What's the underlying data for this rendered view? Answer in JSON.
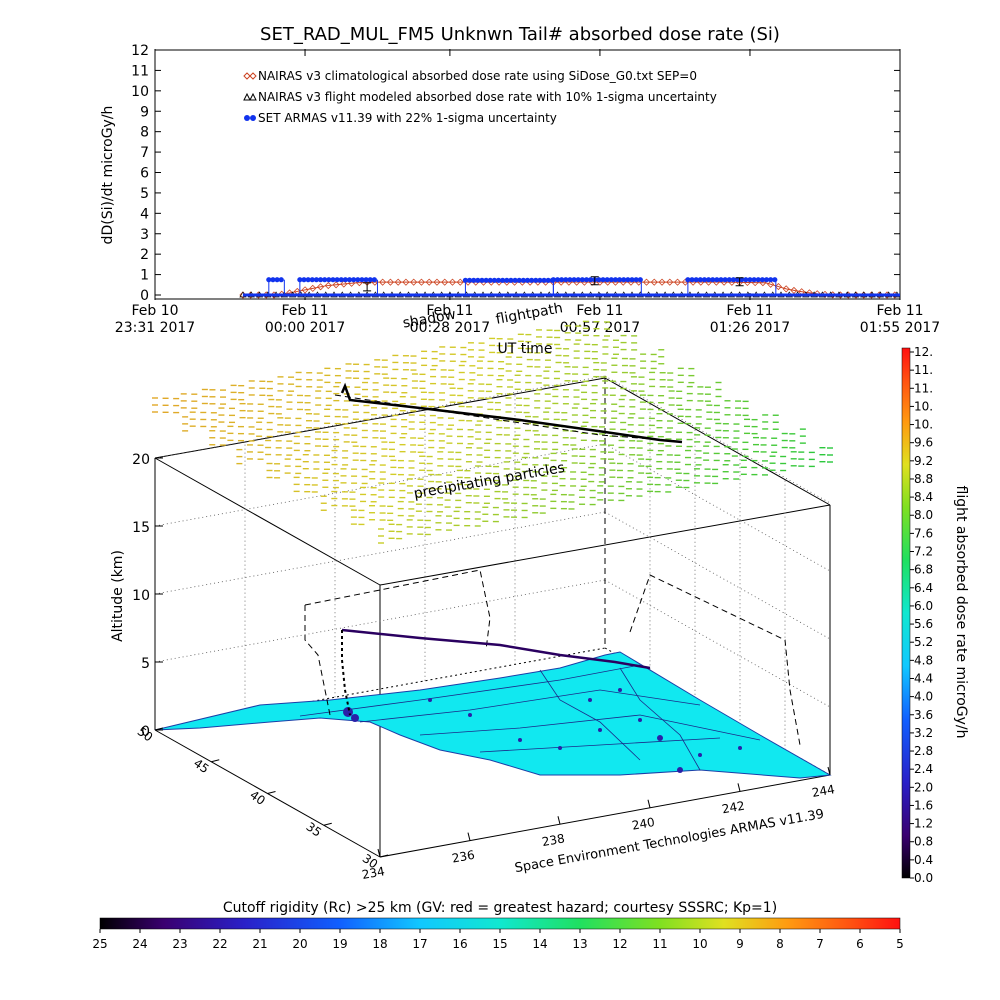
{
  "chart_data": [
    {
      "type": "line",
      "title": "SET_RAD_MUL_FM5 Unknwn Tail#  absorbed dose rate (Si)",
      "ylabel": "dD(Si)/dt microGy/h",
      "xlabel": "UT time",
      "ylim": [
        0,
        12
      ],
      "yticks": [
        0,
        1,
        2,
        3,
        4,
        5,
        6,
        7,
        8,
        9,
        10,
        11,
        12
      ],
      "xrange": [
        "2017-02-10 23:31",
        "2017-02-11 01:55"
      ],
      "xticks": [
        {
          "line1": "Feb 10",
          "line2": "23:31 2017"
        },
        {
          "line1": "Feb 11",
          "line2": "00:00 2017"
        },
        {
          "line1": "Feb 11",
          "line2": "00:28 2017"
        },
        {
          "line1": "Feb 11",
          "line2": "00:57 2017"
        },
        {
          "line1": "Feb 11",
          "line2": "01:26 2017"
        },
        {
          "line1": "Feb 11",
          "line2": "01:55 2017"
        }
      ],
      "legend": [
        {
          "label": "NAIRAS v3 climatological absorbed dose rate using SiDose_G0.txt SEP=0",
          "color": "#cc4422",
          "marker": "diamond"
        },
        {
          "label": "NAIRAS v3 flight modeled absorbed dose rate with 10% 1-sigma uncertainty",
          "color": "#000000",
          "marker": "triangle"
        },
        {
          "label": "SET ARMAS v11.39 with 22% 1-sigma uncertainty",
          "color": "#1133ee",
          "marker": "dot"
        }
      ],
      "legend_position": "top-left",
      "series": [
        {
          "name": "NAIRAS v3 climatological absorbed dose rate using SiDose_G0.txt SEP=0",
          "x_minutes_from_start": [
            17,
            20,
            23,
            25,
            27,
            29,
            31,
            33,
            35,
            37,
            39,
            41,
            43,
            45,
            47,
            50,
            55,
            60,
            70,
            80,
            90,
            100,
            110,
            118,
            120,
            122,
            124,
            126,
            128,
            130,
            132,
            134,
            136,
            138,
            140,
            142,
            144
          ],
          "values": [
            0,
            0,
            0,
            0.05,
            0.15,
            0.25,
            0.35,
            0.45,
            0.5,
            0.55,
            0.6,
            0.62,
            0.63,
            0.63,
            0.63,
            0.63,
            0.63,
            0.63,
            0.63,
            0.63,
            0.63,
            0.63,
            0.63,
            0.6,
            0.45,
            0.3,
            0.2,
            0.12,
            0.06,
            0.02,
            0,
            0,
            0,
            0,
            0,
            0,
            0
          ]
        },
        {
          "name": "NAIRAS v3 flight modeled absorbed dose rate with 10% 1-sigma uncertainty",
          "x_minutes_from_start": [
            17,
            30,
            40,
            50,
            60,
            70,
            80,
            90,
            100,
            110,
            120,
            130,
            140,
            144
          ],
          "values": [
            0,
            0,
            0,
            0,
            0,
            0,
            0,
            0,
            0,
            0,
            0,
            0,
            0,
            0
          ]
        },
        {
          "name": "SET ARMAS v11.39 with 22% 1-sigma uncertainty",
          "segments_high": [
            [
              22,
              25
            ],
            [
              28,
              43
            ],
            [
              77,
              94
            ],
            [
              103,
              120
            ]
          ],
          "segments_mid": [
            [
              60,
              77
            ]
          ],
          "high_value": 0.75,
          "mid_value": 0.72,
          "base_value": 0
        }
      ],
      "annotations": [
        {
          "text": "error bar",
          "x": 41,
          "y": 0.4
        },
        {
          "text": "error bar",
          "x": 85,
          "y": 0.7
        },
        {
          "text": "error bar",
          "x": 113,
          "y": 0.65
        }
      ]
    },
    {
      "type": "surface3d",
      "zlabel": "Altitude (km)",
      "zticks": [
        0,
        5,
        10,
        15,
        20
      ],
      "zlim": [
        0,
        22
      ],
      "lat_ticks": [
        30,
        35,
        40,
        45,
        50
      ],
      "lon_ticks": [
        234,
        236,
        238,
        240,
        242,
        244
      ],
      "flight_altitude_km": 22.5,
      "dose_colorbar_label": "flight absorbed dose rate microGy/h",
      "dose_colorbar_ticks": [
        "0.0",
        "0.4",
        "0.8",
        "1.2",
        "1.6",
        "2.0",
        "2.4",
        "2.8",
        "3.2",
        "3.6",
        "4.0",
        "4.4",
        "4.8",
        "5.2",
        "5.6",
        "6.0",
        "6.4",
        "6.8",
        "7.2",
        "7.6",
        "8.0",
        "8.4",
        "8.8",
        "9.2",
        "9.6",
        "10.",
        "10.",
        "11.",
        "11.",
        "12."
      ],
      "annotations": [
        "shadow",
        "flightpath",
        "precipitating particles"
      ],
      "credit": "Space Environment Technologies ARMAS v11.39"
    },
    {
      "type": "colorbar",
      "title": "Cutoff rigidity (Rc) >25 km (GV: red = greatest hazard; courtesy SSSRC; Kp=1)",
      "ticks": [
        25,
        24,
        23,
        22,
        21,
        20,
        19,
        18,
        17,
        16,
        15,
        14,
        13,
        12,
        11,
        10,
        9,
        8,
        7,
        6,
        5
      ]
    }
  ]
}
